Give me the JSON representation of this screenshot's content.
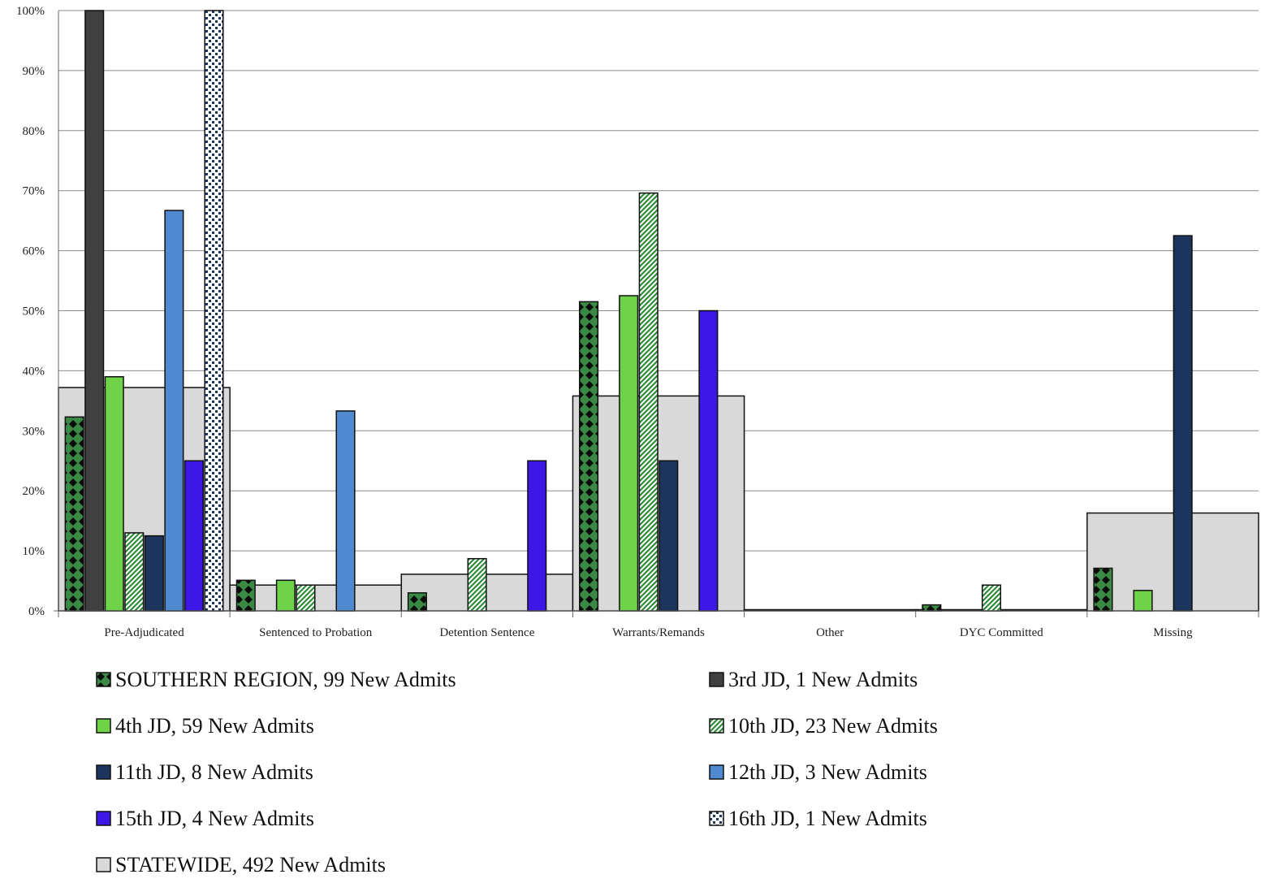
{
  "chart_data": {
    "type": "bar",
    "title": "",
    "xlabel": "",
    "ylabel": "",
    "ylim": [
      0,
      100
    ],
    "y_ticks": [
      "0%",
      "10%",
      "20%",
      "30%",
      "40%",
      "50%",
      "60%",
      "70%",
      "80%",
      "90%",
      "100%"
    ],
    "grid": true,
    "legend_position": "bottom",
    "categories": [
      "Pre-Adjudicated",
      "Sentenced to Probation",
      "Detention Sentence",
      "Warrants/Remands",
      "Other",
      "DYC Committed",
      "Missing"
    ],
    "background_series": {
      "name": "STATEWIDE, 492 New Admits",
      "values": [
        37.2,
        4.3,
        6.1,
        35.8,
        0.2,
        0.2,
        16.3
      ],
      "color": "#d9d9d9"
    },
    "series": [
      {
        "name": "SOUTHERN REGION, 99 New Admits",
        "values": [
          32.3,
          5.1,
          3.0,
          51.5,
          0.0,
          1.0,
          7.1
        ],
        "color": "#3a8a45",
        "pattern": "diamond"
      },
      {
        "name": "3rd JD, 1 New Admits",
        "values": [
          100,
          0,
          0,
          0,
          0,
          0,
          0
        ],
        "color": "#404040",
        "pattern": "solid"
      },
      {
        "name": "4th JD, 59 New Admits",
        "values": [
          39.0,
          5.1,
          0,
          52.5,
          0,
          0,
          3.4
        ],
        "color": "#6fd34a",
        "pattern": "solid"
      },
      {
        "name": "10th JD, 23 New Admits",
        "values": [
          13.0,
          4.3,
          8.7,
          69.6,
          0,
          4.3,
          0
        ],
        "color": "#2f8a3a",
        "pattern": "stripe"
      },
      {
        "name": "11th JD, 8 New Admits",
        "values": [
          12.5,
          0,
          0,
          25.0,
          0,
          0,
          62.5
        ],
        "color": "#1b355c",
        "pattern": "solid"
      },
      {
        "name": "12th JD, 3 New Admits",
        "values": [
          66.7,
          33.3,
          0,
          0,
          0,
          0,
          0
        ],
        "color": "#4f8ad1",
        "pattern": "solid"
      },
      {
        "name": "15th JD, 4 New Admits",
        "values": [
          25.0,
          0,
          25.0,
          50.0,
          0,
          0,
          0
        ],
        "color": "#3d17e6",
        "pattern": "solid"
      },
      {
        "name": "16th JD, 1 New Admits",
        "values": [
          100,
          0,
          0,
          0,
          0,
          0,
          0
        ],
        "color": "#1b355c",
        "pattern": "dots"
      }
    ]
  }
}
